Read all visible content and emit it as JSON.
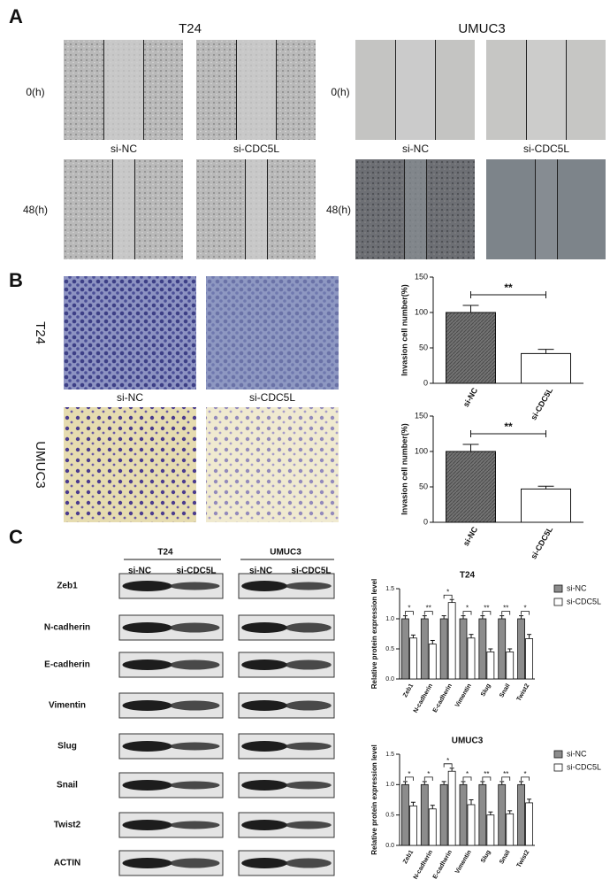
{
  "panels": {
    "a": {
      "label": "A",
      "cell_lines": [
        "T24",
        "UMUC3"
      ],
      "time_labels": [
        "0(h)",
        "48(h)"
      ],
      "conditions": [
        "si-NC",
        "si-CDC5L"
      ]
    },
    "b": {
      "label": "B",
      "cell_lines": [
        "T24",
        "UMUC3"
      ],
      "conditions": [
        "si-NC",
        "si-CDC5L"
      ]
    },
    "c": {
      "label": "C",
      "cell_lines": [
        "T24",
        "UMUC3"
      ],
      "conditions": [
        "si-NC",
        "si-CDC5L"
      ],
      "proteins": [
        "Zeb1",
        "N-cadherin",
        "E-cadherin",
        "Vimentin",
        "Slug",
        "Snail",
        "Twist2",
        "ACTIN"
      ]
    }
  },
  "chart_data": [
    {
      "type": "bar",
      "y_label": "Invasion cell number(%)",
      "categories": [
        "si-NC",
        "si-CDC5L"
      ],
      "values": [
        100,
        42
      ],
      "errors": [
        10,
        6
      ],
      "colors": [
        "#6e6e6e",
        "#ffffff"
      ],
      "annotation": "**",
      "ylim": [
        0,
        150
      ],
      "yticks": [
        0,
        50,
        100,
        150
      ]
    },
    {
      "type": "bar",
      "y_label": "Invasion cell number(%)",
      "categories": [
        "si-NC",
        "si-CDC5L"
      ],
      "values": [
        100,
        47
      ],
      "errors": [
        10,
        4
      ],
      "colors": [
        "#6e6e6e",
        "#ffffff"
      ],
      "annotation": "**",
      "ylim": [
        0,
        150
      ],
      "yticks": [
        0,
        50,
        100,
        150
      ]
    },
    {
      "type": "bar",
      "title": "T24",
      "y_label": "Relative protein expression level",
      "categories": [
        "Zeb1",
        "N-cadherin",
        "E-cadherin",
        "Vimentin",
        "Slug",
        "Snail",
        "Twist2"
      ],
      "series": [
        {
          "name": "si-NC",
          "color": "#8c8c8c",
          "values": [
            1,
            1,
            1,
            1,
            1,
            1,
            1
          ],
          "errors": [
            0.05,
            0.05,
            0.05,
            0.05,
            0.05,
            0.05,
            0.05
          ]
        },
        {
          "name": "si-CDC5L",
          "color": "#ffffff",
          "values": [
            0.68,
            0.58,
            1.27,
            0.68,
            0.45,
            0.45,
            0.67
          ],
          "errors": [
            0.05,
            0.06,
            0.05,
            0.06,
            0.05,
            0.05,
            0.07
          ]
        }
      ],
      "significance": [
        "*",
        "**",
        "*",
        "*",
        "**",
        "**",
        "*"
      ],
      "ylim": [
        0,
        1.5
      ],
      "yticks": [
        {
          "value": 0,
          "label": "0.0"
        },
        0.5,
        {
          "value": 1,
          "label": "1.0"
        },
        1.5
      ],
      "legend": "right"
    },
    {
      "type": "bar",
      "title": "UMUC3",
      "y_label": "Relative protein expression level",
      "categories": [
        "Zeb1",
        "N-cadherin",
        "E-cadherin",
        "Vimentin",
        "Slug",
        "Snail",
        "Twist2"
      ],
      "series": [
        {
          "name": "si-NC",
          "color": "#8c8c8c",
          "values": [
            1,
            1,
            1,
            1,
            1,
            1,
            1
          ],
          "errors": [
            0.05,
            0.05,
            0.05,
            0.05,
            0.05,
            0.05,
            0.05
          ]
        },
        {
          "name": "si-CDC5L",
          "color": "#ffffff",
          "values": [
            0.65,
            0.6,
            1.22,
            0.67,
            0.5,
            0.52,
            0.7
          ],
          "errors": [
            0.06,
            0.06,
            0.05,
            0.08,
            0.05,
            0.05,
            0.06
          ]
        }
      ],
      "significance": [
        "*",
        "*",
        "*",
        "*",
        "**",
        "**",
        "*"
      ],
      "ylim": [
        0,
        1.5
      ],
      "yticks": [
        {
          "value": 0,
          "label": "0.0"
        },
        0.5,
        {
          "value": 1,
          "label": "1.0"
        },
        1.5
      ],
      "legend": "right"
    }
  ]
}
